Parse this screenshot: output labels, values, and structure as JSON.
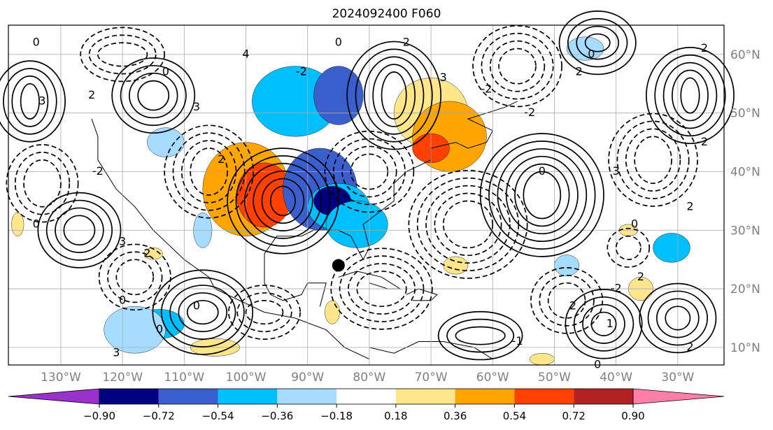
{
  "title": "2024092400 F060",
  "lon_labels": [
    "130°W",
    "120°W",
    "110°W",
    "100°W",
    "90°W",
    "80°W",
    "70°W",
    "60°W",
    "50°W",
    "40°W",
    "30°W"
  ],
  "lat_labels": [
    "60°N",
    "50°N",
    "40°N",
    "30°N",
    "20°N",
    "10°N"
  ],
  "colorbar": {
    "tick_labels": [
      "−0.90",
      "−0.72",
      "−0.54",
      "−0.36",
      "−0.18",
      "0.18",
      "0.36",
      "0.54",
      "0.72",
      "0.90"
    ],
    "colors": [
      "#9932cc",
      "#000080",
      "#3a5fcd",
      "#00bfff",
      "#a6dcff",
      "#ffffff",
      "#ffe68a",
      "#ffa500",
      "#ff4000",
      "#b22222",
      "#ff7fa8"
    ]
  },
  "contour_labels": [
    "0",
    "3",
    "2",
    "0",
    "3",
    "2",
    "-2",
    "4",
    "-2",
    "0",
    "2",
    "3",
    "-2",
    "-2",
    "0",
    "3",
    "0",
    "2",
    "-2",
    "-2",
    "0",
    "2",
    "2",
    "-2",
    "2",
    "1",
    "2",
    "0",
    "-1",
    "3",
    "0",
    "0",
    "3",
    "0",
    "0",
    "2"
  ],
  "marker": {
    "lon": -85,
    "lat": 24
  }
}
